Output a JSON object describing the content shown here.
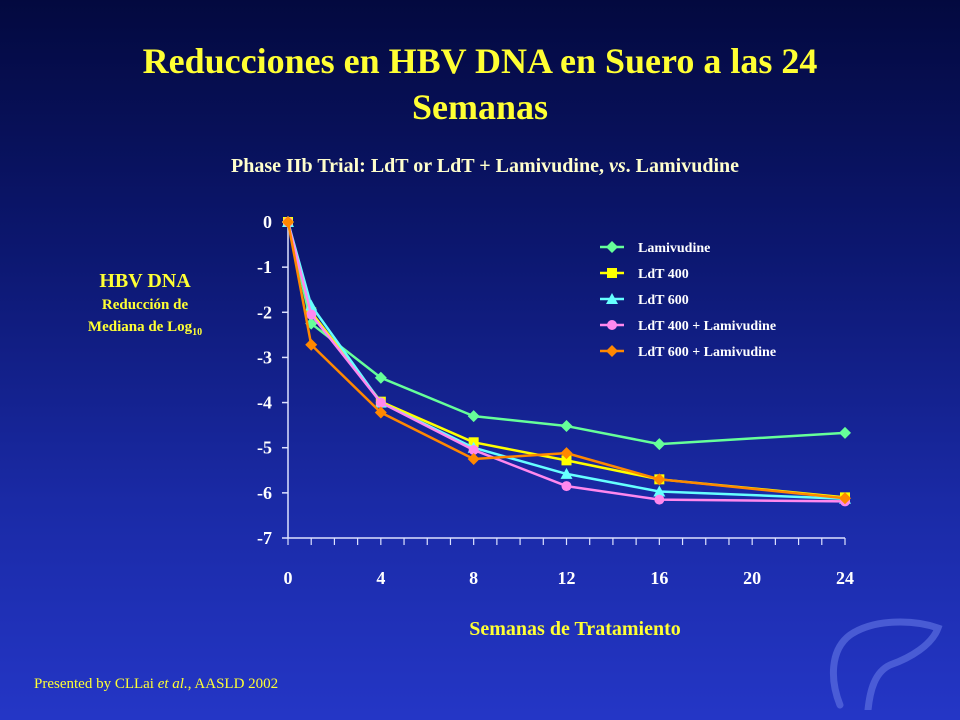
{
  "title_line1": "Reducciones en HBV DNA en Suero a las 24",
  "title_line2": "Semanas",
  "subtitle_main": "Phase IIb Trial:  LdT or LdT + Lamivudine, ",
  "subtitle_vs": "vs",
  "subtitle_tail": ". Lamivudine",
  "ylabel_line1": "HBV DNA",
  "ylabel_line2": "Reducción de",
  "ylabel_line3": "Mediana de Log",
  "ylabel_sub": "10",
  "footer_pre": "Presented by CLLai ",
  "footer_etal": "et al.",
  "footer_post": ", AASLD 2002",
  "chart_data": {
    "type": "line",
    "xlabel": "Semanas de Tratamiento",
    "xlim": [
      0,
      24
    ],
    "ylim": [
      -7,
      0
    ],
    "xticks": [
      0,
      4,
      8,
      12,
      16,
      20,
      24
    ],
    "yticks": [
      0,
      -1,
      -2,
      -3,
      -4,
      -5,
      -6,
      -7
    ],
    "legend_position": "top-right",
    "series": [
      {
        "name": "Lamivudine",
        "color": "#66ff99",
        "marker": "diamond",
        "x": [
          0,
          1,
          4,
          8,
          12,
          16,
          24
        ],
        "y": [
          0,
          -2.25,
          -3.45,
          -4.3,
          -4.52,
          -4.92,
          -4.67
        ]
      },
      {
        "name": "LdT 400",
        "color": "#ffff00",
        "marker": "square",
        "x": [
          0,
          1,
          4,
          8,
          12,
          16,
          24
        ],
        "y": [
          0,
          -2.0,
          -3.98,
          -4.88,
          -5.28,
          -5.7,
          -6.1
        ]
      },
      {
        "name": "LdT 600",
        "color": "#66ffff",
        "marker": "triangle",
        "x": [
          0,
          1,
          4,
          8,
          12,
          16,
          24
        ],
        "y": [
          0,
          -1.85,
          -4.0,
          -5.0,
          -5.58,
          -5.97,
          -6.13
        ]
      },
      {
        "name": "LdT 400 + Lamivudine",
        "color": "#ff88ee",
        "marker": "circle",
        "x": [
          0,
          1,
          4,
          8,
          12,
          16,
          24
        ],
        "y": [
          0,
          -2.05,
          -4.0,
          -5.05,
          -5.85,
          -6.15,
          -6.19
        ]
      },
      {
        "name": "LdT 600 + Lamivudine",
        "color": "#ff8800",
        "marker": "diamond",
        "x": [
          0,
          1,
          4,
          8,
          12,
          16,
          24
        ],
        "y": [
          0,
          -2.72,
          -4.22,
          -5.25,
          -5.12,
          -5.7,
          -6.12
        ]
      }
    ]
  }
}
